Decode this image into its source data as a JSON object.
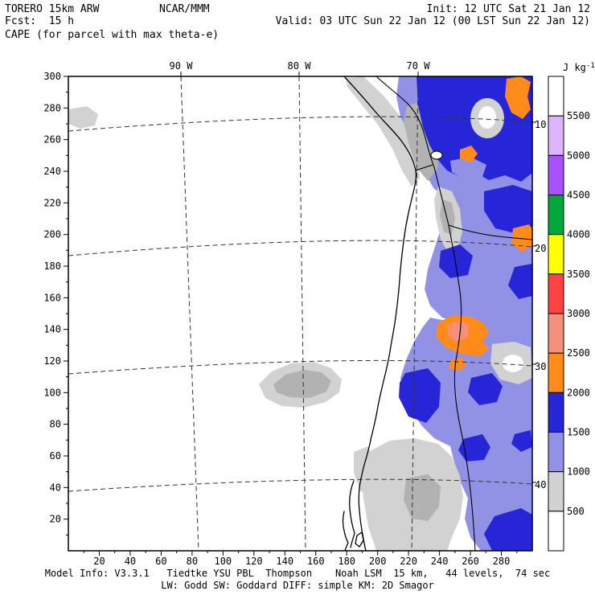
{
  "header": {
    "model": "TORERO 15km ARW",
    "center": "NCAR/MMM",
    "init": "Init: 12 UTC Sat 21 Jan 12",
    "fcst": "Fcst:  15 h",
    "valid": "Valid: 03 UTC Sun 22 Jan 12 (00 LST Sun 22 Jan 12)",
    "field_title": "CAPE (for parcel with max theta-e)"
  },
  "footer": {
    "line1": "Model Info: V3.3.1   Tiedtke YSU PBL  Thompson    Noah LSM  15 km,   44 levels,  74 sec",
    "line2": "LW: Godd SW: Goddard DIFF: simple KM: 2D Smagor"
  },
  "axes": {
    "left_labels": [
      "300",
      "280",
      "260",
      "240",
      "220",
      "200",
      "180",
      "160",
      "140",
      "120",
      "100",
      "80",
      "60",
      "40",
      "20"
    ],
    "bottom_labels": [
      "20",
      "40",
      "60",
      "80",
      "100",
      "120",
      "140",
      "160",
      "180",
      "200",
      "220",
      "240",
      "260",
      "280"
    ]
  },
  "map": {
    "top_labels": [
      "90 W",
      "80 W",
      "70 W"
    ],
    "lat_labels": [
      "10 S",
      "20 S",
      "30 S",
      "40 S"
    ]
  },
  "colorbar": {
    "unit": "J kg",
    "unit_exp": "-1",
    "levels": [
      "5500",
      "5000",
      "4500",
      "4000",
      "3500",
      "3000",
      "2500",
      "2000",
      "1500",
      "1000",
      "500"
    ],
    "colors_top_to_bottom": [
      "#ffffff",
      "#dcb4ff",
      "#a852ff",
      "#00a83c",
      "#ffff00",
      "#ff4242",
      "#f5907e",
      "#ff8c1a",
      "#2626d8",
      "#9191e6",
      "#d2d2d2",
      "#ffffff"
    ]
  },
  "chart_data": {
    "type": "heatmap",
    "title": "CAPE (for parcel with max theta-e)",
    "units": "J kg-1",
    "levels": [
      500,
      1000,
      1500,
      2000,
      2500,
      3000,
      3500,
      4000,
      4500,
      5000,
      5500
    ],
    "level_colors_low_to_high": [
      "#ffffff",
      "#d2d2d2",
      "#9191e6",
      "#2626d8",
      "#ff8c1a",
      "#f5907e",
      "#ff4242",
      "#ffff00",
      "#00a83c",
      "#a852ff",
      "#dcb4ff",
      "#ffffff"
    ],
    "lon_gridlines": [
      "90 W",
      "80 W",
      "70 W"
    ],
    "lat_gridlines": [
      "10 S",
      "20 S",
      "30 S",
      "40 S"
    ],
    "x_grid_ticks": [
      20,
      40,
      60,
      80,
      100,
      120,
      140,
      160,
      180,
      200,
      220,
      240,
      260,
      280
    ],
    "y_grid_ticks": [
      20,
      40,
      60,
      80,
      100,
      120,
      140,
      160,
      180,
      200,
      220,
      240,
      260,
      280,
      300
    ],
    "summary": "CAPE filled contours mostly 500-3000 J/kg east of the Andes over Bolivia and NW Argentina; strongest cell ~2500-3000 J/kg near 27S 67W; Pacific mostly <500 with a 500-1000 J/kg patch near 32S 80W"
  }
}
